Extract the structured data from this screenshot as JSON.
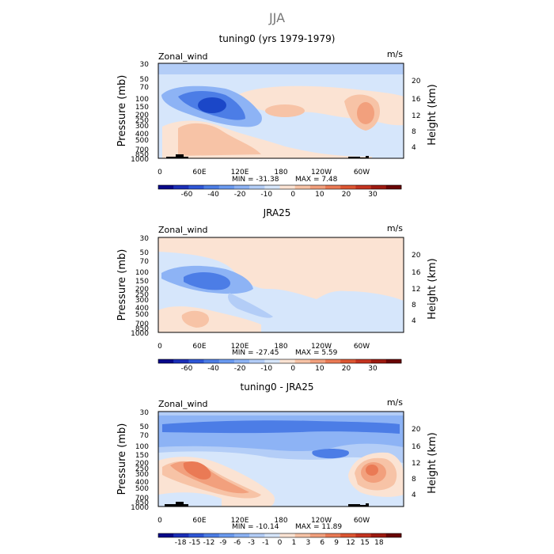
{
  "figure_title": "JJA",
  "chart_data": [
    {
      "type": "heatmap",
      "title": "tuning0 (yrs 1979-1979)",
      "left_label": "Zonal_wind",
      "units": "m/s",
      "ylabel_left": "Pressure (mb)",
      "ylabel_right": "Height (km)",
      "x_ticks": [
        "0",
        "60E",
        "120E",
        "180",
        "120W",
        "60W"
      ],
      "pressure_ticks": [
        "30",
        "50",
        "70",
        "100",
        "150",
        "200",
        "250",
        "300",
        "400",
        "500",
        "700",
        "850",
        "1000"
      ],
      "height_ticks": [
        "20",
        "16",
        "12",
        "8",
        "4"
      ],
      "min_text": "MIN = -31.38",
      "max_text": "MAX = 7.48",
      "min": -31.38,
      "max": 7.48,
      "colorbar_labels": [
        "-60",
        "-40",
        "-20",
        "-10",
        "0",
        "10",
        "20",
        "30"
      ]
    },
    {
      "type": "heatmap",
      "title": "JRA25",
      "left_label": "Zonal_wind",
      "units": "m/s",
      "ylabel_left": "Pressure (mb)",
      "ylabel_right": "Height (km)",
      "x_ticks": [
        "0",
        "60E",
        "120E",
        "180",
        "120W",
        "60W"
      ],
      "pressure_ticks": [
        "30",
        "50",
        "70",
        "100",
        "150",
        "200",
        "250",
        "300",
        "400",
        "500",
        "700",
        "850",
        "1000"
      ],
      "height_ticks": [
        "20",
        "16",
        "12",
        "8",
        "4"
      ],
      "min_text": "MIN = -27.45",
      "max_text": "MAX = 5.59",
      "min": -27.45,
      "max": 5.59,
      "colorbar_labels": [
        "-60",
        "-40",
        "-20",
        "-10",
        "0",
        "10",
        "20",
        "30"
      ]
    },
    {
      "type": "heatmap",
      "title": "tuning0 - JRA25",
      "left_label": "Zonal_wind",
      "units": "m/s",
      "ylabel_left": "Pressure (mb)",
      "ylabel_right": "Height (km)",
      "x_ticks": [
        "0",
        "60E",
        "120E",
        "180",
        "120W",
        "60W"
      ],
      "pressure_ticks": [
        "30",
        "50",
        "70",
        "100",
        "150",
        "200",
        "250",
        "300",
        "400",
        "500",
        "700",
        "850",
        "1000"
      ],
      "height_ticks": [
        "20",
        "16",
        "12",
        "8",
        "4"
      ],
      "min_text": "MIN = -10.14",
      "max_text": "MAX = 11.89",
      "min": -10.14,
      "max": 11.89,
      "colorbar_labels": [
        "-18",
        "-15",
        "-12",
        "-9",
        "-6",
        "-3",
        "-1",
        "0",
        "1",
        "3",
        "6",
        "9",
        "12",
        "15",
        "18"
      ]
    }
  ],
  "colors": {
    "colorbar": [
      "#08088a",
      "#1b2fb8",
      "#2e56d6",
      "#4c7de6",
      "#6a9af0",
      "#8db3f5",
      "#b3cdf7",
      "#d6e6fb",
      "#fbe3d3",
      "#f7c3a6",
      "#f2a07d",
      "#ea7a55",
      "#dd5632",
      "#c43420",
      "#9e1a10",
      "#6a0505"
    ],
    "fields": {
      "light_blue": "#d6e6fb",
      "mid_blue": "#b3cdf7",
      "blue": "#8db3f5",
      "strong_blue": "#4c7de6",
      "deep_blue": "#1b47c8",
      "light_peach": "#fbe3d3",
      "peach": "#f7c3a6",
      "salmon": "#f2a07d",
      "orange_red": "#ea7a55",
      "red": "#dd5632",
      "dark_red": "#c43420",
      "topography": "#000000"
    }
  }
}
